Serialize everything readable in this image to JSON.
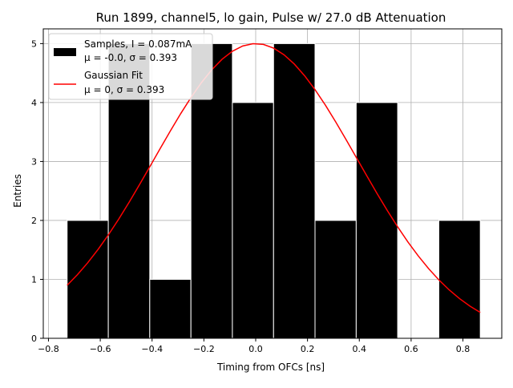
{
  "chart_data": {
    "type": "bar",
    "title": "Run 1899, channel5, lo gain, Pulse w/ 27.0 dB Attenuation",
    "xlabel": "Timing from OFCs [ns]",
    "ylabel": "Entries",
    "xlim": [
      -0.82,
      0.95
    ],
    "ylim": [
      0,
      5.25
    ],
    "xticks": [
      -0.8,
      -0.6,
      -0.4,
      -0.2,
      0.0,
      0.2,
      0.4,
      0.6,
      0.8
    ],
    "xtick_labels": [
      "−0.8",
      "−0.6",
      "−0.4",
      "−0.2",
      "0.0",
      "0.2",
      "0.4",
      "0.6",
      "0.8"
    ],
    "yticks": [
      0,
      1,
      2,
      3,
      4,
      5
    ],
    "ytick_labels": [
      "0",
      "1",
      "2",
      "3",
      "4",
      "5"
    ],
    "grid": true,
    "legend_position": "top-left",
    "histogram": {
      "name_line1": "Samples, I = 0.087mA",
      "name_line2": "μ = -0.0, σ = 0.393",
      "color": "#000000",
      "bin_edges": [
        -0.728,
        -0.569,
        -0.409,
        -0.25,
        -0.09,
        0.069,
        0.229,
        0.388,
        0.548,
        0.707,
        0.867
      ],
      "counts": [
        2,
        5,
        1,
        5,
        4,
        5,
        2,
        4,
        0,
        2
      ]
    },
    "fit": {
      "name_line1": "Gaussian Fit",
      "name_line2": "μ = 0, σ = 0.393",
      "color": "#ff0000",
      "amplitude": 5.0,
      "mu": 0.0,
      "sigma": 0.393,
      "x_range": [
        -0.728,
        0.867
      ]
    }
  }
}
